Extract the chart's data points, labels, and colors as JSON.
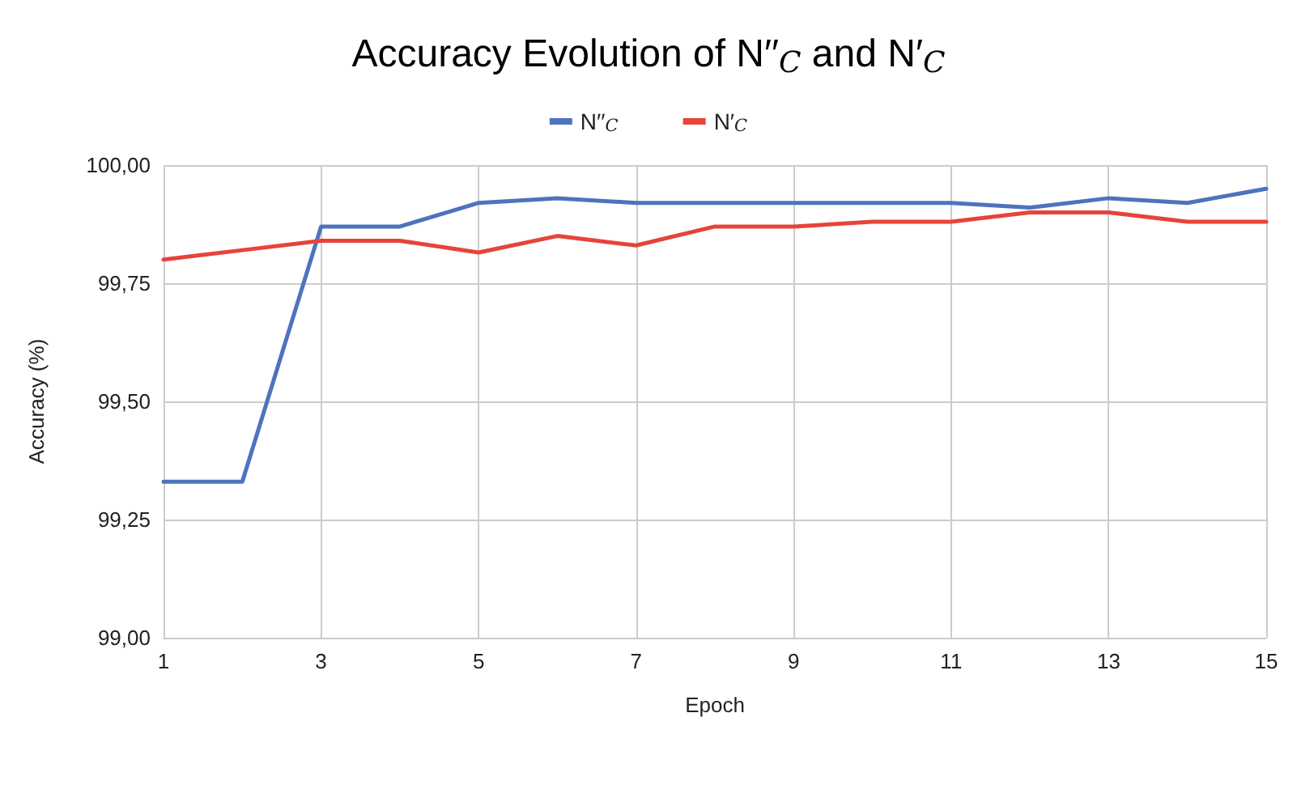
{
  "chart_data": {
    "type": "line",
    "title": "Accuracy Evolution of N′′$_{C}$ and N′$_{C}$",
    "xlabel": "Epoch",
    "ylabel": "Accuracy (%)",
    "x": [
      1,
      2,
      3,
      4,
      5,
      6,
      7,
      8,
      9,
      10,
      11,
      12,
      13,
      14,
      15
    ],
    "series": [
      {
        "name": "N′′$_{C}$",
        "color": "#4e73be",
        "values": [
          99.33,
          99.33,
          99.87,
          99.87,
          99.92,
          99.93,
          99.92,
          99.92,
          99.92,
          99.92,
          99.92,
          99.91,
          99.93,
          99.92,
          99.95
        ]
      },
      {
        "name": "N′$_{C}$",
        "color": "#e6443a",
        "values": [
          99.8,
          99.82,
          99.84,
          99.84,
          99.815,
          99.85,
          99.83,
          99.87,
          99.87,
          99.88,
          99.88,
          99.9,
          99.9,
          99.88,
          99.88
        ]
      }
    ],
    "xlim": [
      1,
      15
    ],
    "xticks": [
      1,
      3,
      5,
      7,
      9,
      11,
      13,
      15
    ],
    "ylim": [
      99,
      100
    ],
    "yticks": [
      {
        "value": 99,
        "label": "99,00"
      },
      {
        "value": 99.25,
        "label": "99,25"
      },
      {
        "value": 99.5,
        "label": "99,50"
      },
      {
        "value": 99.75,
        "label": "99,75"
      },
      {
        "value": 100,
        "label": "100,00"
      }
    ],
    "grid": true,
    "legend": "top",
    "marker": "none",
    "line_style": "solid"
  }
}
